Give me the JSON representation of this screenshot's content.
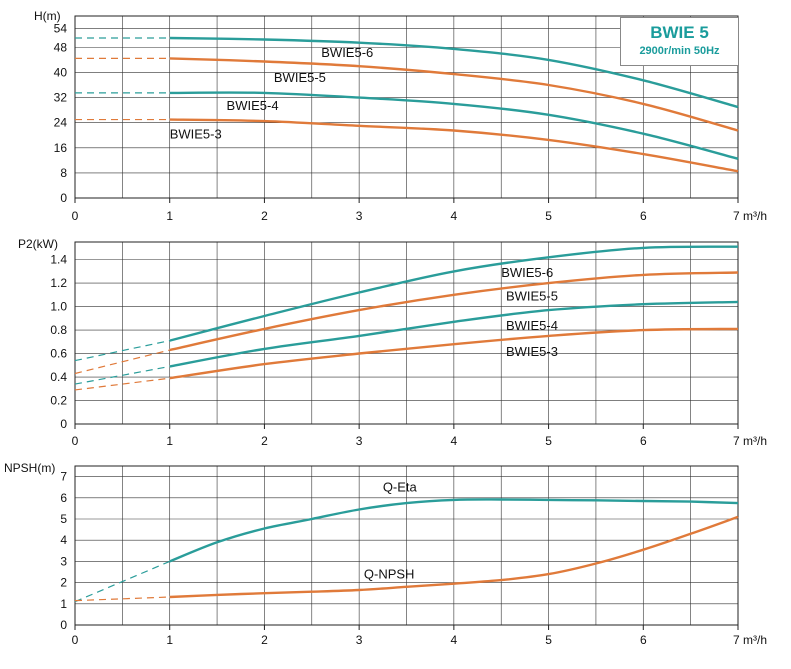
{
  "badge": {
    "title": "BWIE 5",
    "subtitle": "2900r/min 50Hz"
  },
  "colors": {
    "teal": "#2a9d9a",
    "orange": "#e07a3a"
  },
  "chart_data": [
    {
      "type": "line",
      "ylabel": "H(m)",
      "xlabel": "m³/h",
      "xlim": [
        0,
        7
      ],
      "ylim": [
        0,
        58
      ],
      "yticks": [
        0,
        8,
        16,
        24,
        32,
        40,
        48,
        54
      ],
      "xticks": [
        0,
        1,
        2,
        3,
        4,
        5,
        6,
        7
      ],
      "xgrid": [
        0,
        0.5,
        1,
        1.5,
        2,
        2.5,
        3,
        3.5,
        4,
        4.5,
        5,
        5.5,
        6,
        6.5,
        7
      ],
      "grid": true,
      "series": [
        {
          "name": "BWIE5-6",
          "color": "teal",
          "x": [
            1,
            2,
            3,
            4,
            5,
            6,
            7
          ],
          "y": [
            51,
            50.5,
            49.5,
            47.5,
            44,
            37.5,
            29
          ],
          "dashed_from": [
            0,
            51
          ]
        },
        {
          "name": "BWIE5-5",
          "color": "orange",
          "x": [
            1,
            2,
            3,
            4,
            5,
            6,
            7
          ],
          "y": [
            44.5,
            43.5,
            42,
            39.5,
            36,
            30,
            21.5
          ],
          "dashed_from": [
            0,
            44.5
          ]
        },
        {
          "name": "BWIE5-4",
          "color": "teal",
          "x": [
            1,
            2,
            3,
            4,
            5,
            6,
            7
          ],
          "y": [
            33.5,
            33.5,
            32,
            30,
            26.5,
            20.5,
            12.5
          ],
          "dashed_from": [
            0,
            33.5
          ]
        },
        {
          "name": "BWIE5-3",
          "color": "orange",
          "x": [
            1,
            2,
            3,
            4,
            5,
            6,
            7
          ],
          "y": [
            25,
            24.5,
            23,
            21.5,
            18.5,
            14,
            8.5
          ],
          "dashed_from": [
            0,
            25
          ]
        }
      ],
      "labels": [
        {
          "text": "BWIE5-6",
          "x": 2.6,
          "y": 45
        },
        {
          "text": "BWIE5-5",
          "x": 2.1,
          "y": 37
        },
        {
          "text": "BWIE5-4",
          "x": 1.6,
          "y": 28
        },
        {
          "text": "BWIE5-3",
          "x": 1.0,
          "y": 19
        }
      ]
    },
    {
      "type": "line",
      "ylabel": "P2(kW)",
      "xlabel": "m³/h",
      "xlim": [
        0,
        7
      ],
      "ylim": [
        0,
        1.55
      ],
      "yticks": [
        0,
        0.2,
        0.4,
        0.6,
        0.8,
        1.0,
        1.2,
        1.4
      ],
      "ytick_labels": [
        "0",
        "0.2",
        "0.4",
        "0.6",
        "0.8",
        "1.0",
        "1.2",
        "1.4"
      ],
      "xticks": [
        0,
        1,
        2,
        3,
        4,
        5,
        6,
        7
      ],
      "xgrid": [
        0,
        0.5,
        1,
        1.5,
        2,
        2.5,
        3,
        3.5,
        4,
        4.5,
        5,
        5.5,
        6,
        6.5,
        7
      ],
      "grid": true,
      "series": [
        {
          "name": "BWIE5-6",
          "color": "teal",
          "x": [
            1,
            2,
            3,
            4,
            5,
            6,
            7
          ],
          "y": [
            0.71,
            0.92,
            1.12,
            1.3,
            1.42,
            1.5,
            1.51
          ],
          "dashed_from": [
            0,
            0.54
          ]
        },
        {
          "name": "BWIE5-5",
          "color": "orange",
          "x": [
            1,
            2,
            3,
            4,
            5,
            6,
            7
          ],
          "y": [
            0.63,
            0.81,
            0.97,
            1.1,
            1.2,
            1.27,
            1.29
          ],
          "dashed_from": [
            0,
            0.43
          ]
        },
        {
          "name": "BWIE5-4",
          "color": "teal",
          "x": [
            1,
            2,
            3,
            4,
            5,
            6,
            7
          ],
          "y": [
            0.49,
            0.64,
            0.75,
            0.87,
            0.97,
            1.02,
            1.04
          ],
          "dashed_from": [
            0,
            0.34
          ]
        },
        {
          "name": "BWIE5-3",
          "color": "orange",
          "x": [
            1,
            2,
            3,
            4,
            5,
            6,
            7
          ],
          "y": [
            0.39,
            0.51,
            0.6,
            0.68,
            0.75,
            0.8,
            0.81
          ],
          "dashed_from": [
            0,
            0.29
          ]
        }
      ],
      "labels": [
        {
          "text": "BWIE5-6",
          "x": 4.5,
          "y": 1.25
        },
        {
          "text": "BWIE5-5",
          "x": 4.55,
          "y": 1.05
        },
        {
          "text": "BWIE5-4",
          "x": 4.55,
          "y": 0.8
        },
        {
          "text": "BWIE5-3",
          "x": 4.55,
          "y": 0.58
        }
      ]
    },
    {
      "type": "line",
      "ylabel": "NPSH(m)",
      "xlabel": "m³/h",
      "xlim": [
        0,
        7
      ],
      "ylim": [
        0,
        7.5
      ],
      "yticks": [
        0,
        1,
        2,
        3,
        4,
        5,
        6,
        7
      ],
      "xticks": [
        0,
        1,
        2,
        3,
        4,
        5,
        6,
        7
      ],
      "xgrid": [
        0,
        0.5,
        1,
        1.5,
        2,
        2.5,
        3,
        3.5,
        4,
        4.5,
        5,
        5.5,
        6,
        6.5,
        7
      ],
      "grid": true,
      "series": [
        {
          "name": "Q-Eta",
          "color": "teal",
          "x": [
            1,
            1.5,
            2,
            2.5,
            3,
            3.5,
            4,
            4.5,
            5,
            5.5,
            6,
            6.5,
            7
          ],
          "y": [
            3.0,
            3.9,
            4.55,
            5.0,
            5.45,
            5.75,
            5.9,
            5.92,
            5.9,
            5.88,
            5.85,
            5.82,
            5.75
          ],
          "dashed_from": [
            0,
            1.1
          ]
        },
        {
          "name": "Q-NPSH",
          "color": "orange",
          "x": [
            1,
            1.5,
            2,
            2.5,
            3,
            3.5,
            4,
            4.5,
            5,
            5.5,
            6,
            6.5,
            7
          ],
          "y": [
            1.32,
            1.42,
            1.5,
            1.57,
            1.65,
            1.8,
            1.95,
            2.12,
            2.4,
            2.9,
            3.55,
            4.3,
            5.1
          ],
          "dashed_from": [
            0,
            1.15
          ]
        }
      ],
      "labels": [
        {
          "text": "Q-Eta",
          "x": 3.25,
          "y": 6.3
        },
        {
          "text": "Q-NPSH",
          "x": 3.05,
          "y": 2.2
        }
      ]
    }
  ]
}
